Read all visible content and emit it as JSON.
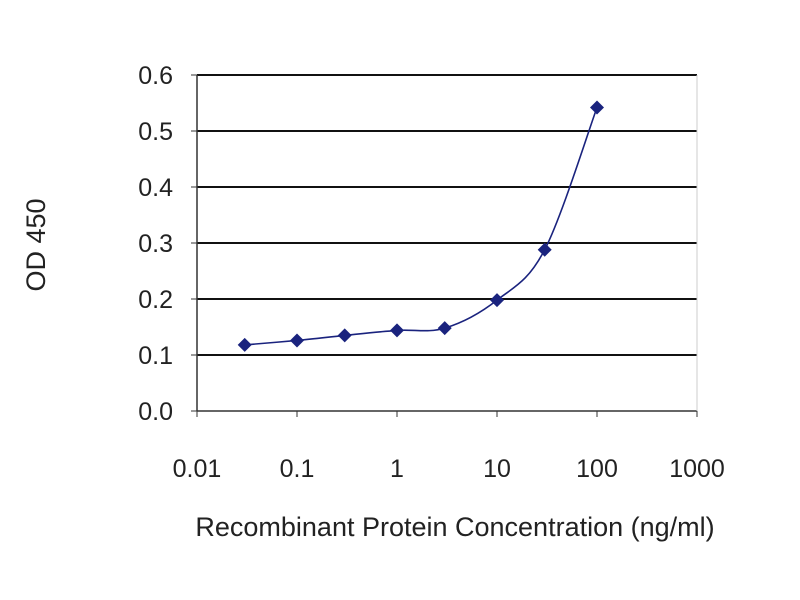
{
  "chart_data": {
    "type": "line",
    "title": "",
    "xlabel": "Recombinant Protein Concentration (ng/ml)",
    "ylabel": "OD 450",
    "xscale": "log",
    "xlim": [
      0.01,
      1000
    ],
    "ylim": [
      0.0,
      0.6
    ],
    "xticks": [
      "0.01",
      "0.1",
      "1",
      "10",
      "100",
      "1000"
    ],
    "yticks": [
      "0.0",
      "0.1",
      "0.2",
      "0.3",
      "0.4",
      "0.5",
      "0.6"
    ],
    "grid": "horizontal",
    "legend": "none",
    "series": [
      {
        "x": [
          0.03,
          0.1,
          0.3,
          1,
          3,
          10,
          30,
          100
        ],
        "y": [
          0.118,
          0.126,
          0.135,
          0.144,
          0.148,
          0.198,
          0.288,
          0.542
        ]
      }
    ],
    "colors": {
      "series": "#1a237e",
      "grid": "#111111",
      "axis": "#333333"
    }
  }
}
